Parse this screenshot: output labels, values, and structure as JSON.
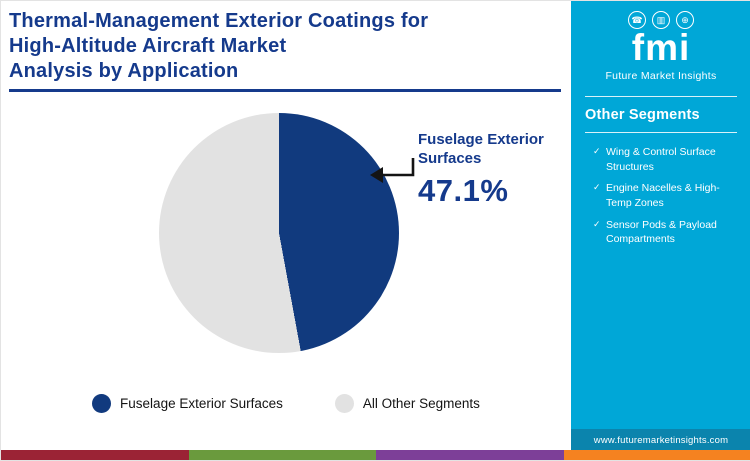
{
  "title": {
    "text": "Thermal-Management Exterior Coatings for\nHigh-Altitude Aircraft Market\nAnalysis by Application"
  },
  "chart_data": {
    "type": "pie",
    "title": "Thermal-Management Exterior Coatings for High-Altitude Aircraft Market Analysis by Application",
    "labels": [
      "Fuselage Exterior Surfaces",
      "All Other Segments"
    ],
    "values": [
      47.1,
      52.9
    ],
    "colors": [
      "#113a7e",
      "#e2e2e2"
    ],
    "start_angle_deg": 0,
    "legend_position": "bottom",
    "annotation": {
      "label": "Fuselage Exterior Surfaces",
      "value": "47.1%"
    }
  },
  "callout": {
    "label": "Fuselage Exterior\nSurfaces",
    "value": "47.1%"
  },
  "legend": [
    {
      "label": "Fuselage Exterior Surfaces",
      "color": "#113a7e"
    },
    {
      "label": "All Other Segments",
      "color": "#e2e2e2"
    }
  ],
  "sidebar": {
    "logo": {
      "icons": [
        {
          "name": "phone-icon",
          "glyph": "☎"
        },
        {
          "name": "chart-icon",
          "glyph": "▥"
        },
        {
          "name": "globe-icon",
          "glyph": "⊕"
        }
      ],
      "text": "fmi",
      "subtitle": "Future Market Insights"
    },
    "other_segments": {
      "heading": "Other Segments",
      "bullet_glyph": "✓",
      "items": [
        "Wing & Control Surface Structures",
        "Engine Nacelles & High-Temp Zones",
        "Sensor Pods & Payload Compartments"
      ]
    },
    "website": "www.futuremarketinsights.com"
  },
  "footer": {
    "stripe_colors": [
      "#9b2335",
      "#6a9a3d",
      "#7d3f98",
      "#f58220"
    ]
  },
  "colors": {
    "title_navy": "#153a8c",
    "sidebar_blue": "#00a7d7",
    "website_bar": "#0b84ad"
  }
}
